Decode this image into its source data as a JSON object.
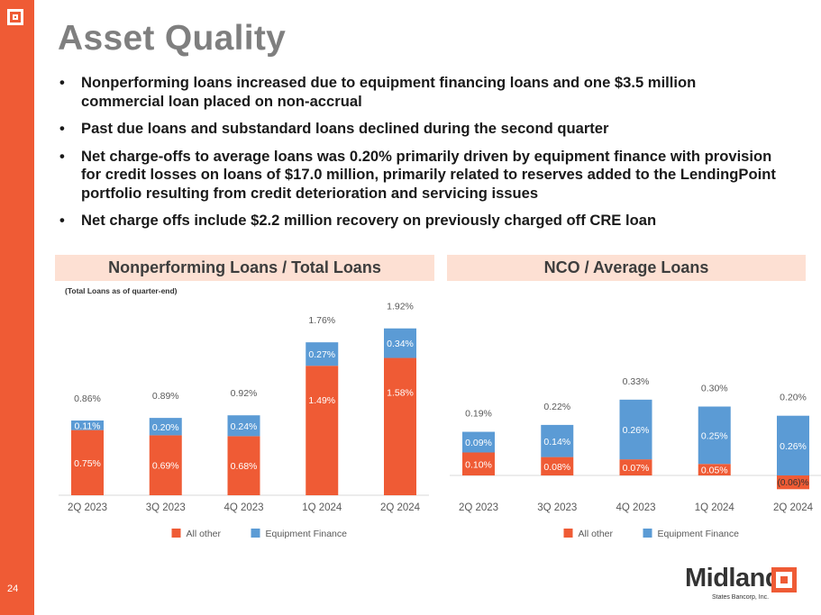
{
  "slide": {
    "title": "Asset Quality",
    "page_number": "24",
    "bullets": [
      "Nonperforming loans increased due to equipment financing loans and one $3.5 million commercial loan placed on non-accrual",
      "Past due loans and substandard loans declined during the second quarter",
      "Net charge-offs to average loans was 0.20% primarily driven by equipment finance with provision for credit losses on loans of $17.0 million, primarily related to reserves added to the LendingPoint portfolio resulting from credit deterioration and servicing issues",
      "Net charge offs include $2.2 million recovery on previously charged off CRE loan"
    ],
    "bullet_symbol": "•",
    "logo": {
      "name": "Midland",
      "subtitle": "States Bancorp, Inc."
    }
  },
  "colors": {
    "accent": "#ef5b35",
    "equipment": "#5b9bd5",
    "header_bg": "#fde0d3",
    "title": "#7f7f7f"
  },
  "chart_data": [
    {
      "type": "bar",
      "stacked": true,
      "title": "Nonperforming Loans / Total Loans",
      "note": "(Total Loans as of quarter-end)",
      "categories": [
        "2Q 2023",
        "3Q 2023",
        "4Q 2023",
        "1Q 2024",
        "2Q 2024"
      ],
      "series": [
        {
          "name": "All other",
          "values": [
            0.75,
            0.69,
            0.68,
            1.49,
            1.58
          ],
          "labels": [
            "0.75%",
            "0.69%",
            "0.68%",
            "1.49%",
            "1.58%"
          ]
        },
        {
          "name": "Equipment Finance",
          "values": [
            0.11,
            0.2,
            0.24,
            0.27,
            0.34
          ],
          "labels": [
            "0.11%",
            "0.20%",
            "0.24%",
            "0.27%",
            "0.34%"
          ]
        }
      ],
      "totals": [
        "0.86%",
        "0.89%",
        "0.92%",
        "1.76%",
        "1.92%"
      ],
      "ylim": [
        0,
        2.0
      ],
      "legend": "bottom"
    },
    {
      "type": "bar",
      "stacked": true,
      "title": "NCO / Average Loans",
      "categories": [
        "2Q 2023",
        "3Q 2023",
        "4Q 2023",
        "1Q 2024",
        "2Q 2024"
      ],
      "series": [
        {
          "name": "All other",
          "values": [
            0.1,
            0.08,
            0.07,
            0.05,
            -0.06
          ],
          "labels": [
            "0.10%",
            "0.08%",
            "0.07%",
            "0.05%",
            "(0.06)%"
          ]
        },
        {
          "name": "Equipment Finance",
          "values": [
            0.09,
            0.14,
            0.26,
            0.25,
            0.26
          ],
          "labels": [
            "0.09%",
            "0.14%",
            "0.26%",
            "0.25%",
            "0.26%"
          ]
        }
      ],
      "totals": [
        "0.19%",
        "0.22%",
        "0.33%",
        "0.30%",
        "0.20%"
      ],
      "ylim": [
        -0.06,
        0.33
      ],
      "legend": "bottom"
    }
  ]
}
